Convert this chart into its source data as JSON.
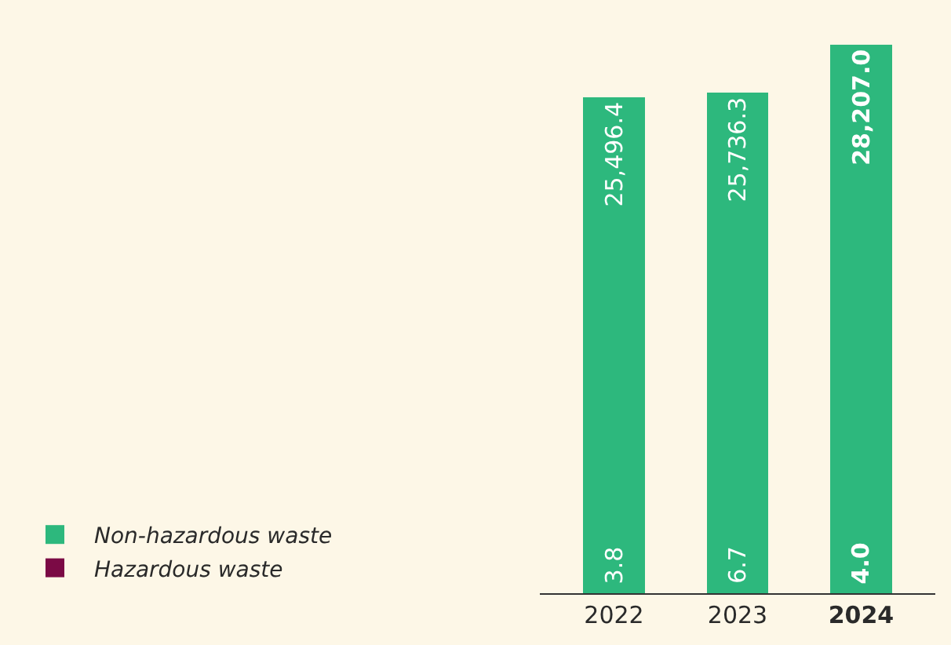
{
  "chart_data": {
    "type": "bar",
    "stacked": true,
    "categories": [
      "2022",
      "2023",
      "2024"
    ],
    "series": [
      {
        "name": "Hazardous waste",
        "color": "#7b0a45",
        "values": [
          3.8,
          6.7,
          4.0
        ],
        "value_labels": [
          "3.8",
          "6.7",
          "4.0"
        ]
      },
      {
        "name": "Non-hazardous waste",
        "color": "#2db87d",
        "values": [
          25496.4,
          25736.3,
          28207.0
        ],
        "value_labels": [
          "25,496.4",
          "25,736.3",
          "28,207.0"
        ]
      }
    ],
    "legend": "bottom left"
  }
}
